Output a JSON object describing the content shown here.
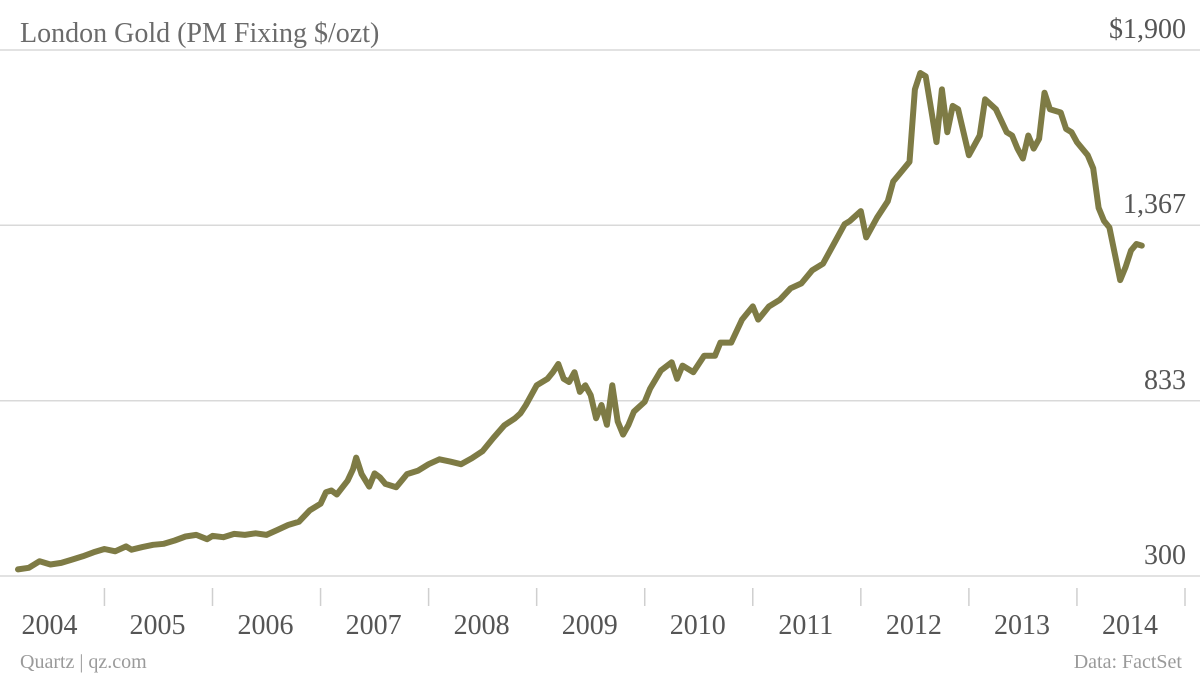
{
  "chart_data": {
    "type": "line",
    "title": "London Gold (PM Fixing $/ozt)",
    "xlabel": "",
    "ylabel": "",
    "ylim": [
      300,
      1900
    ],
    "xlim": [
      2003.2,
      2014.0
    ],
    "y_ticks": [
      {
        "value": 1900,
        "label": "$1,900"
      },
      {
        "value": 1367,
        "label": "1,367"
      },
      {
        "value": 833,
        "label": "833"
      },
      {
        "value": 300,
        "label": "300"
      }
    ],
    "x_ticks": [
      {
        "value": 2004,
        "label": "2004"
      },
      {
        "value": 2005,
        "label": "2005"
      },
      {
        "value": 2006,
        "label": "2006"
      },
      {
        "value": 2007,
        "label": "2007"
      },
      {
        "value": 2008,
        "label": "2008"
      },
      {
        "value": 2009,
        "label": "2009"
      },
      {
        "value": 2010,
        "label": "2010"
      },
      {
        "value": 2011,
        "label": "2011"
      },
      {
        "value": 2012,
        "label": "2012"
      },
      {
        "value": 2013,
        "label": "2013"
      },
      {
        "value": 2014,
        "label": "2014"
      }
    ],
    "grid": true,
    "series": [
      {
        "color": "#7e7b45",
        "x": [
          2003.2,
          2003.3,
          2003.4,
          2003.5,
          2003.6,
          2003.7,
          2003.8,
          2003.9,
          2004.0,
          2004.1,
          2004.2,
          2004.25,
          2004.35,
          2004.45,
          2004.55,
          2004.65,
          2004.75,
          2004.85,
          2004.95,
          2005.0,
          2005.1,
          2005.2,
          2005.3,
          2005.4,
          2005.5,
          2005.6,
          2005.7,
          2005.8,
          2005.9,
          2006.0,
          2006.05,
          2006.1,
          2006.15,
          2006.25,
          2006.3,
          2006.33,
          2006.38,
          2006.45,
          2006.5,
          2006.55,
          2006.6,
          2006.7,
          2006.75,
          2006.8,
          2006.9,
          2007.0,
          2007.1,
          2007.2,
          2007.3,
          2007.4,
          2007.5,
          2007.6,
          2007.7,
          2007.8,
          2007.85,
          2007.9,
          2008.0,
          2008.1,
          2008.15,
          2008.2,
          2008.25,
          2008.3,
          2008.35,
          2008.4,
          2008.45,
          2008.5,
          2008.55,
          2008.6,
          2008.65,
          2008.7,
          2008.75,
          2008.8,
          2008.85,
          2008.9,
          2009.0,
          2009.05,
          2009.15,
          2009.25,
          2009.3,
          2009.35,
          2009.45,
          2009.55,
          2009.65,
          2009.7,
          2009.8,
          2009.9,
          2010.0,
          2010.05,
          2010.15,
          2010.25,
          2010.35,
          2010.45,
          2010.55,
          2010.65,
          2010.75,
          2010.85,
          2010.9,
          2011.0,
          2011.05,
          2011.15,
          2011.25,
          2011.3,
          2011.35,
          2011.45,
          2011.5,
          2011.55,
          2011.6,
          2011.65,
          2011.7,
          2011.75,
          2011.8,
          2011.85,
          2011.9,
          2012.0,
          2012.1,
          2012.15,
          2012.25,
          2012.35,
          2012.4,
          2012.45,
          2012.5,
          2012.55,
          2012.6,
          2012.65,
          2012.7,
          2012.75,
          2012.85,
          2012.9,
          2012.95,
          2013.0,
          2013.1,
          2013.15,
          2013.2,
          2013.25,
          2013.3,
          2013.35,
          2013.4,
          2013.45,
          2013.5,
          2013.55,
          2013.6
        ],
        "values": [
          320,
          325,
          345,
          335,
          340,
          350,
          360,
          372,
          382,
          375,
          390,
          380,
          388,
          395,
          398,
          408,
          420,
          425,
          412,
          422,
          418,
          428,
          425,
          430,
          425,
          440,
          455,
          465,
          500,
          520,
          555,
          560,
          548,
          590,
          625,
          660,
          610,
          572,
          612,
          600,
          580,
          570,
          590,
          610,
          620,
          640,
          655,
          648,
          640,
          658,
          680,
          720,
          758,
          780,
          795,
          820,
          880,
          900,
          920,
          945,
          900,
          890,
          920,
          860,
          880,
          850,
          780,
          820,
          760,
          880,
          770,
          730,
          760,
          800,
          830,
          870,
          925,
          950,
          900,
          940,
          920,
          970,
          970,
          1010,
          1010,
          1080,
          1120,
          1080,
          1120,
          1140,
          1175,
          1190,
          1230,
          1250,
          1310,
          1370,
          1380,
          1410,
          1330,
          1390,
          1440,
          1500,
          1520,
          1560,
          1780,
          1830,
          1820,
          1720,
          1620,
          1780,
          1650,
          1730,
          1720,
          1580,
          1640,
          1750,
          1720,
          1650,
          1640,
          1600,
          1570,
          1640,
          1600,
          1630,
          1770,
          1720,
          1710,
          1660,
          1650,
          1620,
          1580,
          1540,
          1420,
          1380,
          1360,
          1280,
          1200,
          1240,
          1290,
          1310,
          1305
        ]
      }
    ]
  },
  "footer": {
    "source_left": "Quartz | qz.com",
    "source_right": "Data: FactSet"
  }
}
